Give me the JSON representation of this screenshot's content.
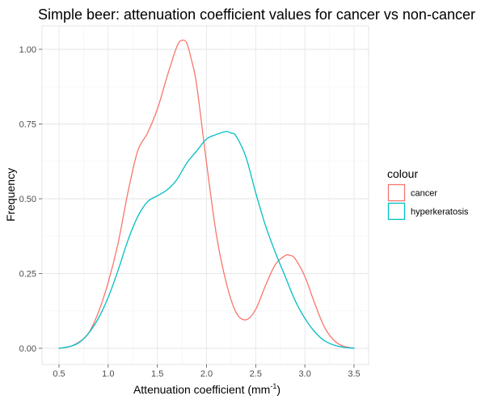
{
  "chart_data": {
    "type": "line",
    "title": "Simple beer: attenuation coefficient values for cancer vs non-cancer",
    "xlabel": "Attenuation coefficient (mm",
    "xlabel_superscript": "-1",
    "xlabel_suffix": ")",
    "ylabel": "Frequency",
    "xlim": [
      0.5,
      3.5
    ],
    "ylim": [
      0.0,
      1.03
    ],
    "x_ticks": [
      0.5,
      1.0,
      1.5,
      2.0,
      2.5,
      3.0,
      3.5
    ],
    "x_tick_labels": [
      "0.5",
      "1.0",
      "1.5",
      "2.0",
      "2.5",
      "3.0",
      "3.5"
    ],
    "y_ticks": [
      0.0,
      0.25,
      0.5,
      0.75,
      1.0
    ],
    "y_tick_labels": [
      "0.00",
      "0.25",
      "0.50",
      "0.75",
      "1.00"
    ],
    "grid": true,
    "legend": {
      "title": "colour",
      "position": "right"
    },
    "series": [
      {
        "name": "cancer",
        "color": "#F8766D",
        "x": [
          0.5,
          0.6,
          0.7,
          0.8,
          0.9,
          1.0,
          1.1,
          1.2,
          1.3,
          1.4,
          1.5,
          1.6,
          1.7,
          1.75,
          1.8,
          1.85,
          1.9,
          2.0,
          2.1,
          2.2,
          2.3,
          2.4,
          2.5,
          2.6,
          2.7,
          2.8,
          2.85,
          2.9,
          3.0,
          3.1,
          3.2,
          3.3,
          3.4,
          3.5
        ],
        "y": [
          0.0,
          0.005,
          0.02,
          0.05,
          0.12,
          0.22,
          0.35,
          0.52,
          0.66,
          0.72,
          0.8,
          0.91,
          1.01,
          1.03,
          1.02,
          0.96,
          0.88,
          0.62,
          0.38,
          0.22,
          0.12,
          0.095,
          0.13,
          0.21,
          0.28,
          0.31,
          0.31,
          0.3,
          0.24,
          0.15,
          0.07,
          0.025,
          0.006,
          0.0
        ]
      },
      {
        "name": "hyperkeratosis",
        "color": "#00BFC4",
        "x": [
          0.5,
          0.6,
          0.7,
          0.8,
          0.9,
          1.0,
          1.1,
          1.2,
          1.3,
          1.4,
          1.5,
          1.6,
          1.7,
          1.8,
          1.9,
          2.0,
          2.1,
          2.2,
          2.25,
          2.3,
          2.4,
          2.5,
          2.6,
          2.7,
          2.8,
          2.9,
          3.0,
          3.1,
          3.2,
          3.3,
          3.4,
          3.5
        ],
        "y": [
          0.0,
          0.005,
          0.018,
          0.05,
          0.1,
          0.17,
          0.26,
          0.36,
          0.44,
          0.49,
          0.51,
          0.53,
          0.565,
          0.62,
          0.66,
          0.7,
          0.715,
          0.725,
          0.72,
          0.71,
          0.64,
          0.52,
          0.41,
          0.32,
          0.24,
          0.16,
          0.1,
          0.055,
          0.025,
          0.01,
          0.003,
          0.0
        ]
      }
    ]
  }
}
